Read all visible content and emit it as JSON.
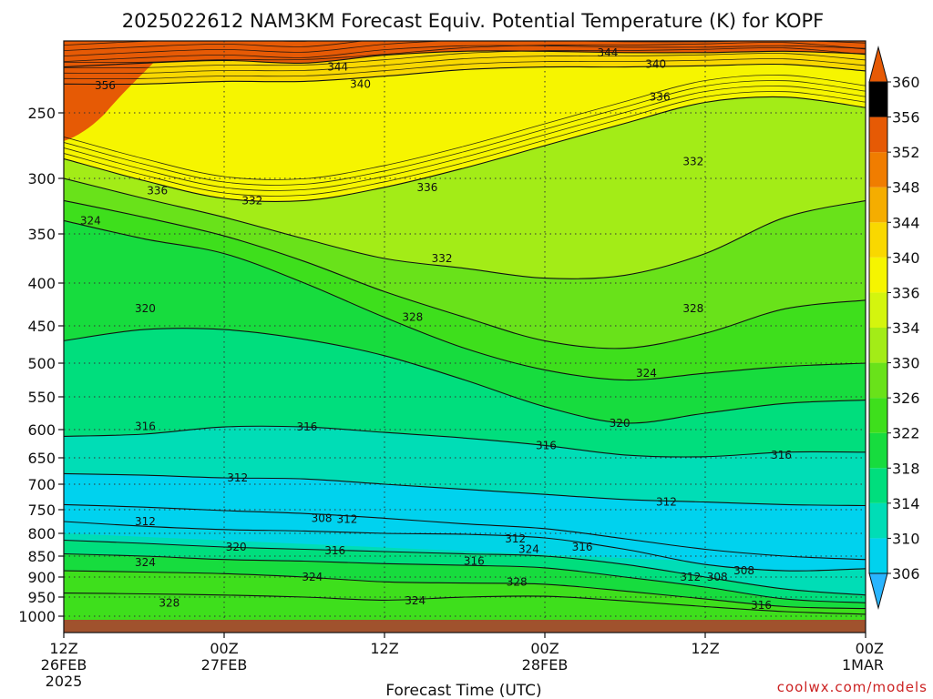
{
  "colors": {
    "scale": [
      "#29b5ff",
      "#00d2ee",
      "#00ddb6",
      "#00de7d",
      "#17dc3e",
      "#3edf1c",
      "#69e21a",
      "#a3ec17",
      "#d4f50e",
      "#f6f500",
      "#f9d800",
      "#f5ad00",
      "#f07d00",
      "#e65a05"
    ],
    "ground": "#a0522d",
    "contour": "#111111",
    "credit": "#cc2222"
  },
  "chart_data": {
    "type": "heatmap",
    "title": "2025022612 NAM3KM Forecast Equiv. Potential Temperature (K) for KOPF",
    "xlabel": "Forecast Time (UTC)",
    "ylabel": "",
    "credit": "coolwx.com/models",
    "x_range_hours": [
      0,
      60
    ],
    "x_ticks": [
      {
        "hour": 0,
        "lines": [
          "12Z",
          "26FEB",
          "2025"
        ]
      },
      {
        "hour": 12,
        "lines": [
          "00Z",
          "27FEB"
        ]
      },
      {
        "hour": 24,
        "lines": [
          "12Z"
        ]
      },
      {
        "hour": 36,
        "lines": [
          "00Z",
          "28FEB"
        ]
      },
      {
        "hour": 48,
        "lines": [
          "12Z"
        ]
      },
      {
        "hour": 60,
        "lines": [
          "00Z",
          "1MAR"
        ]
      }
    ],
    "y_axis": "pressure (hPa), reversed",
    "y_range": [
      1000,
      200
    ],
    "y_ticks": [
      250,
      300,
      350,
      400,
      450,
      500,
      550,
      600,
      650,
      700,
      750,
      800,
      850,
      900,
      950,
      1000
    ],
    "y_tick_labels": [
      "250",
      "300",
      "350",
      "400",
      "450",
      "500",
      "550",
      "600",
      "650",
      "700",
      "750",
      "800",
      "850",
      "900",
      "950",
      "1000"
    ],
    "colorbar": {
      "levels": [
        306,
        310,
        314,
        318,
        322,
        326,
        330,
        334,
        336,
        340,
        344,
        348,
        352,
        356,
        360
      ],
      "labels": [
        "306",
        "310",
        "314",
        "318",
        "322",
        "326",
        "330",
        "334",
        "336",
        "340",
        "344",
        "348",
        "352",
        "356",
        "360"
      ],
      "extend": "both"
    },
    "grid": "dotted, at ticks",
    "series": [
      {
        "level": 344,
        "points": [
          [
            0,
            215
          ],
          [
            6,
            212
          ],
          [
            12,
            210
          ],
          [
            18,
            212
          ],
          [
            24,
            206
          ],
          [
            30,
            203
          ],
          [
            36,
            203
          ],
          [
            42,
            204
          ],
          [
            48,
            204
          ],
          [
            54,
            203
          ],
          [
            60,
            205
          ]
        ]
      },
      {
        "level": 340,
        "points": [
          [
            0,
            228
          ],
          [
            6,
            228
          ],
          [
            12,
            226
          ],
          [
            18,
            226
          ],
          [
            24,
            222
          ],
          [
            30,
            217
          ],
          [
            36,
            215
          ],
          [
            42,
            215
          ],
          [
            48,
            214
          ],
          [
            54,
            213
          ],
          [
            60,
            218
          ]
        ]
      },
      {
        "level": 336,
        "points": [
          [
            0,
            285
          ],
          [
            6,
            302
          ],
          [
            12,
            318
          ],
          [
            18,
            320
          ],
          [
            24,
            308
          ],
          [
            30,
            292
          ],
          [
            36,
            275
          ],
          [
            42,
            258
          ],
          [
            48,
            242
          ],
          [
            54,
            238
          ],
          [
            60,
            246
          ]
        ]
      },
      {
        "level": 332,
        "points": [
          [
            0,
            300
          ],
          [
            6,
            318
          ],
          [
            12,
            335
          ],
          [
            18,
            355
          ],
          [
            24,
            375
          ],
          [
            30,
            385
          ],
          [
            36,
            395
          ],
          [
            42,
            392
          ],
          [
            48,
            370
          ],
          [
            54,
            335
          ],
          [
            60,
            320
          ]
        ]
      },
      {
        "level": 328,
        "points": [
          [
            0,
            320
          ],
          [
            6,
            335
          ],
          [
            12,
            352
          ],
          [
            18,
            378
          ],
          [
            24,
            410
          ],
          [
            30,
            440
          ],
          [
            36,
            470
          ],
          [
            42,
            480
          ],
          [
            48,
            460
          ],
          [
            54,
            430
          ],
          [
            60,
            420
          ]
        ]
      },
      {
        "level": 324,
        "points": [
          [
            0,
            338
          ],
          [
            6,
            355
          ],
          [
            12,
            370
          ],
          [
            18,
            400
          ],
          [
            24,
            440
          ],
          [
            30,
            480
          ],
          [
            36,
            510
          ],
          [
            42,
            525
          ],
          [
            48,
            515
          ],
          [
            54,
            505
          ],
          [
            60,
            500
          ]
        ]
      },
      {
        "level": 320,
        "points": [
          [
            0,
            470
          ],
          [
            6,
            455
          ],
          [
            12,
            455
          ],
          [
            18,
            468
          ],
          [
            24,
            490
          ],
          [
            30,
            525
          ],
          [
            36,
            565
          ],
          [
            42,
            590
          ],
          [
            48,
            575
          ],
          [
            54,
            560
          ],
          [
            60,
            555
          ]
        ]
      },
      {
        "level": 316,
        "points": [
          [
            0,
            612
          ],
          [
            6,
            608
          ],
          [
            12,
            596
          ],
          [
            18,
            596
          ],
          [
            24,
            605
          ],
          [
            30,
            615
          ],
          [
            36,
            628
          ],
          [
            42,
            645
          ],
          [
            48,
            648
          ],
          [
            54,
            640
          ],
          [
            60,
            640
          ]
        ]
      },
      {
        "level": 312,
        "points": [
          [
            0,
            680
          ],
          [
            6,
            683
          ],
          [
            12,
            688
          ],
          [
            18,
            690
          ],
          [
            24,
            700
          ],
          [
            30,
            710
          ],
          [
            36,
            720
          ],
          [
            42,
            730
          ],
          [
            48,
            735
          ],
          [
            54,
            740
          ],
          [
            60,
            742
          ]
        ]
      },
      {
        "level": 308,
        "points": [
          [
            0,
            740
          ],
          [
            6,
            745
          ],
          [
            12,
            752
          ],
          [
            18,
            758
          ],
          [
            24,
            768
          ],
          [
            30,
            780
          ],
          [
            36,
            790
          ],
          [
            42,
            812
          ],
          [
            48,
            835
          ],
          [
            54,
            850
          ],
          [
            60,
            858
          ]
        ]
      },
      {
        "level": 312,
        "points": [
          [
            0,
            775
          ],
          [
            6,
            785
          ],
          [
            12,
            792
          ],
          [
            18,
            795
          ],
          [
            24,
            800
          ],
          [
            30,
            802
          ],
          [
            36,
            810
          ],
          [
            42,
            835
          ],
          [
            48,
            870
          ],
          [
            54,
            885
          ],
          [
            60,
            880
          ]
        ]
      },
      {
        "level": 316,
        "points": [
          [
            0,
            815
          ],
          [
            6,
            822
          ],
          [
            12,
            830
          ],
          [
            18,
            835
          ],
          [
            24,
            840
          ],
          [
            30,
            845
          ],
          [
            36,
            850
          ],
          [
            42,
            870
          ],
          [
            48,
            900
          ],
          [
            54,
            930
          ],
          [
            60,
            945
          ]
        ]
      },
      {
        "level": 320,
        "points": [
          [
            0,
            845
          ],
          [
            6,
            850
          ],
          [
            12,
            858
          ],
          [
            18,
            862
          ],
          [
            24,
            868
          ],
          [
            30,
            872
          ],
          [
            36,
            878
          ],
          [
            42,
            900
          ],
          [
            48,
            925
          ],
          [
            54,
            955
          ],
          [
            60,
            965
          ]
        ]
      },
      {
        "level": 324,
        "points": [
          [
            0,
            885
          ],
          [
            6,
            888
          ],
          [
            12,
            892
          ],
          [
            18,
            900
          ],
          [
            24,
            912
          ],
          [
            30,
            915
          ],
          [
            36,
            918
          ],
          [
            42,
            935
          ],
          [
            48,
            955
          ],
          [
            54,
            975
          ],
          [
            60,
            980
          ]
        ]
      },
      {
        "level": 328,
        "points": [
          [
            0,
            940
          ],
          [
            6,
            942
          ],
          [
            12,
            945
          ],
          [
            18,
            950
          ],
          [
            24,
            958
          ],
          [
            30,
            950
          ],
          [
            36,
            948
          ],
          [
            42,
            960
          ],
          [
            48,
            975
          ],
          [
            54,
            988
          ],
          [
            60,
            995
          ]
        ]
      }
    ],
    "contour_labels": [
      {
        "text": "356",
        "hour": 3.1,
        "p": 229
      },
      {
        "text": "344",
        "hour": 20.5,
        "p": 215
      },
      {
        "text": "340",
        "hour": 22.2,
        "p": 228
      },
      {
        "text": "344",
        "hour": 40.7,
        "p": 204
      },
      {
        "text": "340",
        "hour": 44.3,
        "p": 213
      },
      {
        "text": "336",
        "hour": 44.6,
        "p": 238
      },
      {
        "text": "336",
        "hour": 7.0,
        "p": 311
      },
      {
        "text": "332",
        "hour": 14.1,
        "p": 320
      },
      {
        "text": "336",
        "hour": 27.2,
        "p": 308
      },
      {
        "text": "332",
        "hour": 47.1,
        "p": 287
      },
      {
        "text": "324",
        "hour": 2.0,
        "p": 338
      },
      {
        "text": "332",
        "hour": 28.3,
        "p": 375
      },
      {
        "text": "328",
        "hour": 26.1,
        "p": 440
      },
      {
        "text": "328",
        "hour": 47.1,
        "p": 430
      },
      {
        "text": "320",
        "hour": 6.1,
        "p": 430
      },
      {
        "text": "324",
        "hour": 43.6,
        "p": 515
      },
      {
        "text": "316",
        "hour": 6.1,
        "p": 595
      },
      {
        "text": "316",
        "hour": 18.2,
        "p": 596
      },
      {
        "text": "320",
        "hour": 41.6,
        "p": 590
      },
      {
        "text": "316",
        "hour": 36.1,
        "p": 628
      },
      {
        "text": "316",
        "hour": 53.7,
        "p": 645
      },
      {
        "text": "312",
        "hour": 13.0,
        "p": 688
      },
      {
        "text": "312",
        "hour": 45.1,
        "p": 735
      },
      {
        "text": "312",
        "hour": 6.1,
        "p": 775
      },
      {
        "text": "308",
        "hour": 19.3,
        "p": 768
      },
      {
        "text": "312",
        "hour": 21.2,
        "p": 770
      },
      {
        "text": "320",
        "hour": 12.9,
        "p": 830
      },
      {
        "text": "316",
        "hour": 20.3,
        "p": 838
      },
      {
        "text": "312",
        "hour": 33.8,
        "p": 812
      },
      {
        "text": "324",
        "hour": 34.8,
        "p": 835
      },
      {
        "text": "316",
        "hour": 38.8,
        "p": 830
      },
      {
        "text": "316",
        "hour": 30.7,
        "p": 862
      },
      {
        "text": "324",
        "hour": 6.1,
        "p": 865
      },
      {
        "text": "324",
        "hour": 18.6,
        "p": 900
      },
      {
        "text": "328",
        "hour": 33.9,
        "p": 912
      },
      {
        "text": "324",
        "hour": 26.3,
        "p": 960
      },
      {
        "text": "328",
        "hour": 7.9,
        "p": 965
      },
      {
        "text": "308",
        "hour": 50.9,
        "p": 885
      },
      {
        "text": "312",
        "hour": 46.9,
        "p": 900
      },
      {
        "text": "308",
        "hour": 48.9,
        "p": 900
      },
      {
        "text": "316",
        "hour": 52.2,
        "p": 972
      }
    ]
  }
}
